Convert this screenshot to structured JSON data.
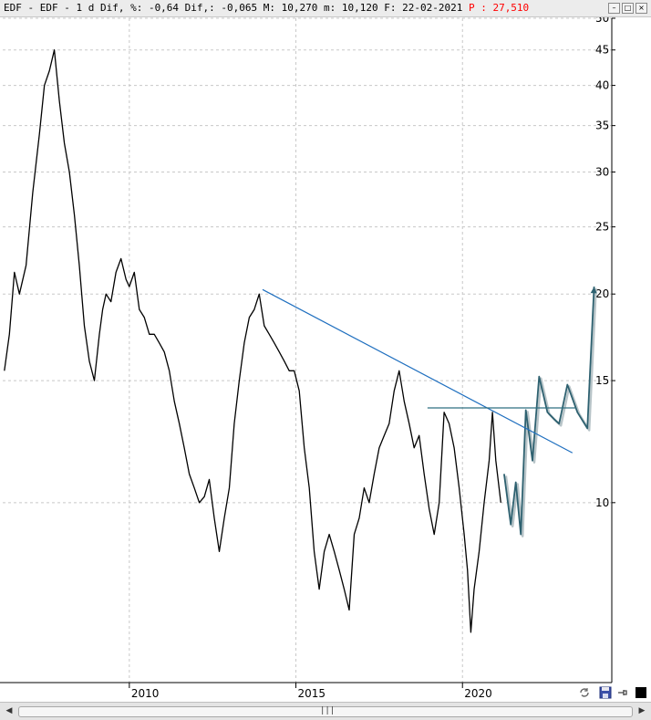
{
  "header": {
    "title": "EDF - EDF -  1 d Dif, %: -0,64 Dif,: -0,065 M: 10,270 m: 10,120 F: 22-02-2021",
    "price_label": "P : 27,510",
    "price_color": "#ff0000",
    "window_buttons": [
      "minimize-icon",
      "maximize-icon",
      "close-icon"
    ]
  },
  "toolbar": {
    "icons": [
      "refresh-icon",
      "save-icon",
      "pin-icon",
      "black-square-icon"
    ]
  },
  "chart_data": {
    "type": "line",
    "title": "",
    "xlabel": "",
    "ylabel": "",
    "y_scale": "log",
    "x_range": [
      2006.2,
      2024.4
    ],
    "ylim": [
      5.5,
      50
    ],
    "grid": true,
    "x_ticks": [
      "2010",
      "2015",
      "2020"
    ],
    "y_ticks": [
      "10",
      "15",
      "20",
      "25",
      "30",
      "35",
      "40",
      "45",
      "50"
    ],
    "series": [
      {
        "color": "#000000",
        "x": [
          2006.25,
          2006.4,
          2006.55,
          2006.7,
          2006.9,
          2007.1,
          2007.3,
          2007.45,
          2007.6,
          2007.75,
          2007.9,
          2008.05,
          2008.2,
          2008.35,
          2008.5,
          2008.65,
          2008.8,
          2008.95,
          2009.1,
          2009.2,
          2009.3,
          2009.45,
          2009.6,
          2009.75,
          2009.9,
          2010.0,
          2010.15,
          2010.3,
          2010.45,
          2010.6,
          2010.75,
          2010.9,
          2011.05,
          2011.2,
          2011.35,
          2011.5,
          2011.65,
          2011.8,
          2011.95,
          2012.1,
          2012.25,
          2012.4,
          2012.55,
          2012.7,
          2012.85,
          2013.0,
          2013.15,
          2013.3,
          2013.45,
          2013.6,
          2013.75,
          2013.9,
          2014.05,
          2014.2,
          2014.35,
          2014.5,
          2014.65,
          2014.8,
          2014.95,
          2015.1,
          2015.25,
          2015.4,
          2015.55,
          2015.7,
          2015.85,
          2016.0,
          2016.15,
          2016.3,
          2016.45,
          2016.6,
          2016.75,
          2016.9,
          2017.05,
          2017.2,
          2017.35,
          2017.5,
          2017.65,
          2017.8,
          2017.95,
          2018.1,
          2018.25,
          2018.4,
          2018.55,
          2018.7,
          2018.85,
          2019.0,
          2019.15,
          2019.3,
          2019.45,
          2019.6,
          2019.75,
          2019.9,
          2020.05,
          2020.15,
          2020.25,
          2020.35,
          2020.5,
          2020.65,
          2020.8,
          2020.9,
          2021.0,
          2021.15
        ],
        "values": [
          15.5,
          17.5,
          21.5,
          20.0,
          22.0,
          28.0,
          34.0,
          40.0,
          42.0,
          45.0,
          38.0,
          33.0,
          30.0,
          26.0,
          22.0,
          18.0,
          16.0,
          15.0,
          17.5,
          19.0,
          20.0,
          19.5,
          21.5,
          22.5,
          21.0,
          20.5,
          21.5,
          19.0,
          18.5,
          17.5,
          17.5,
          17.0,
          16.5,
          15.5,
          14.0,
          13.0,
          12.0,
          11.0,
          10.5,
          10.0,
          10.2,
          10.8,
          9.5,
          8.5,
          9.5,
          10.5,
          13.0,
          15.0,
          17.0,
          18.5,
          19.0,
          20.0,
          18.0,
          17.5,
          17.0,
          16.5,
          16.0,
          15.5,
          15.5,
          14.5,
          12.0,
          10.5,
          8.5,
          7.5,
          8.5,
          9.0,
          8.5,
          8.0,
          7.5,
          7.0,
          9.0,
          9.5,
          10.5,
          10.0,
          11.0,
          12.0,
          12.5,
          13.0,
          14.5,
          15.5,
          14.0,
          13.0,
          12.0,
          12.5,
          11.0,
          9.8,
          9.0,
          10.0,
          13.5,
          13.0,
          12.0,
          10.5,
          9.0,
          8.0,
          6.5,
          7.5,
          8.5,
          10.0,
          11.5,
          13.5,
          11.5,
          10.0
        ]
      },
      {
        "color": "#2e6170",
        "x": [
          2021.25,
          2021.45,
          2021.6,
          2021.75,
          2021.9,
          2022.1,
          2022.3,
          2022.55,
          2022.75,
          2022.9,
          2023.15,
          2023.45,
          2023.75,
          2023.95
        ],
        "values": [
          11.0,
          9.3,
          10.7,
          9.0,
          13.6,
          11.5,
          15.2,
          13.5,
          13.2,
          13.0,
          14.8,
          13.5,
          12.8,
          20.5
        ]
      }
    ],
    "annotations": [
      {
        "type": "trendline",
        "from": {
          "x": 2014.0,
          "y": 20.3
        },
        "to": {
          "x": 2023.3,
          "y": 11.8
        },
        "color": "#1f6fbf"
      },
      {
        "type": "horizontal-line",
        "y": 13.7,
        "x_from": 2018.95,
        "x_to": 2023.4,
        "color": "#2e6f80"
      }
    ]
  }
}
